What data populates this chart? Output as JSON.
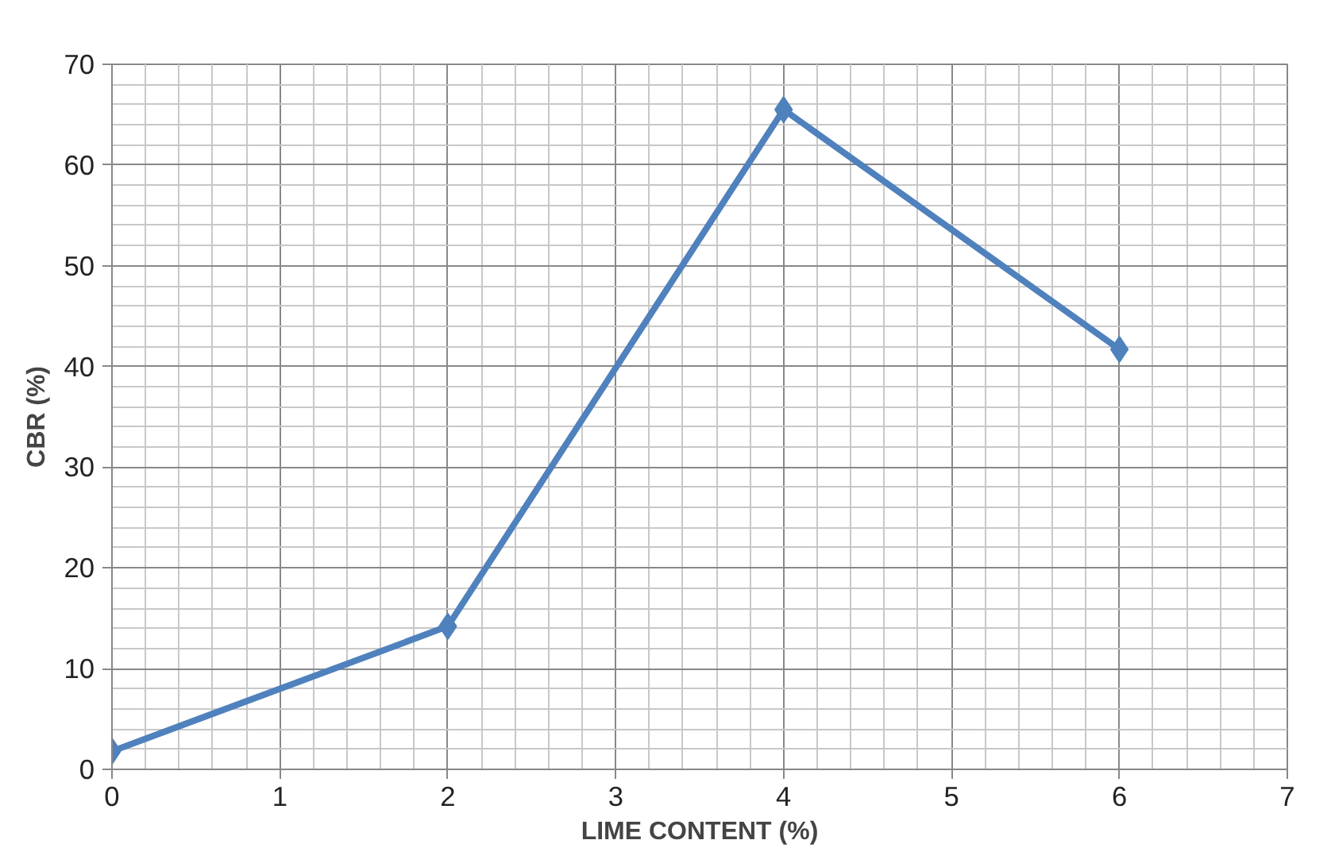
{
  "chart_data": {
    "type": "line",
    "xlabel": "LIME CONTENT (%)",
    "ylabel": "CBR (%)",
    "x": [
      0,
      2,
      4,
      6
    ],
    "series": [
      {
        "color": "#4f81bd",
        "values": [
          1.8,
          14.2,
          65.5,
          41.7
        ]
      }
    ],
    "xlim": [
      0,
      7
    ],
    "ylim": [
      0,
      70
    ],
    "xticks": [
      0,
      1,
      2,
      3,
      4,
      5,
      6,
      7
    ],
    "yticks": [
      0,
      10,
      20,
      30,
      40,
      50,
      60,
      70
    ],
    "grid": true,
    "marker": "diamond",
    "line_style": "solid"
  }
}
